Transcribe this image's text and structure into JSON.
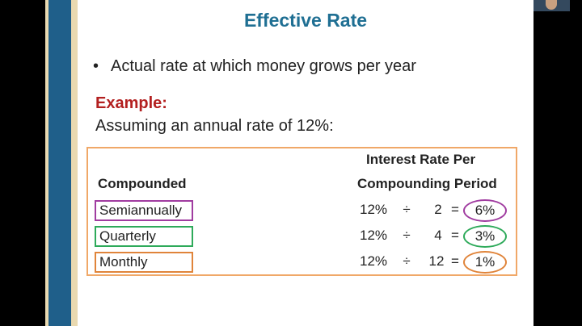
{
  "slide": {
    "title": "Effective Rate",
    "bullet": "Actual rate at which money grows per year",
    "example_label": "Example:",
    "assumption": "Assuming an annual rate of 12%:"
  },
  "table": {
    "col1_header": "Compounded",
    "col2_header_line1": "Interest Rate Per",
    "col2_header_line2": "Compounding Period",
    "rows": [
      {
        "label": "Semiannually",
        "rate": "12%",
        "op": "÷",
        "periods": "2",
        "eq": "=",
        "result": "6%",
        "color": "#a03ca0"
      },
      {
        "label": "Quarterly",
        "rate": "12%",
        "op": "÷",
        "periods": "4",
        "eq": "=",
        "result": "3%",
        "color": "#2eaa5a"
      },
      {
        "label": "Monthly",
        "rate": "12%",
        "op": "÷",
        "periods": "12",
        "eq": "=",
        "result": "1%",
        "color": "#e0843a"
      }
    ]
  },
  "colors": {
    "title": "#1f6f93",
    "example": "#b32020",
    "table_border": "#f0a868",
    "left_bar": "#1f5f8a",
    "left_bar_edge": "#e9d9b0"
  },
  "overlay": {
    "webcam_icon": "webcam-thumbnail"
  }
}
